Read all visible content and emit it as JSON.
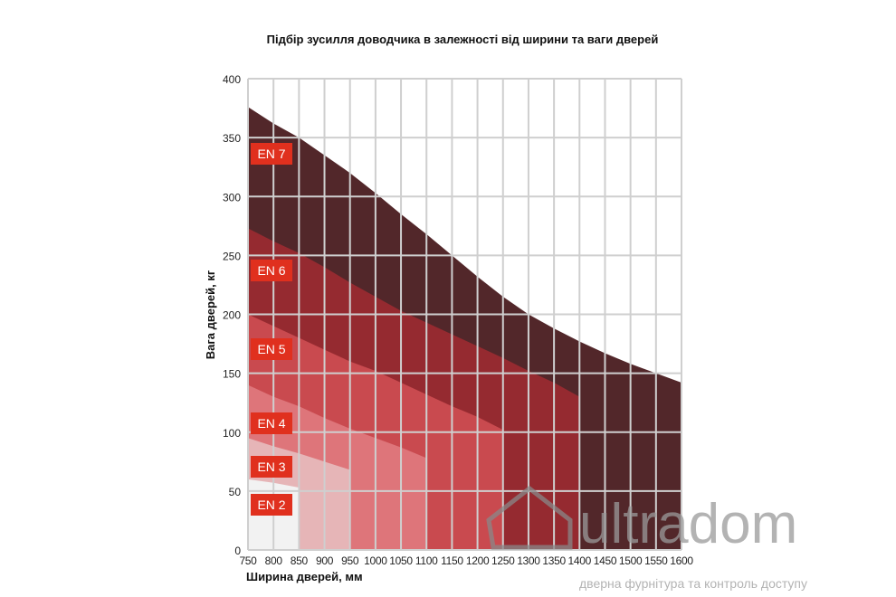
{
  "chart_data": {
    "type": "area",
    "title": "Підбір зусилля доводчика в залежності від ширини та ваги дверей",
    "xlabel": "Ширина дверей, мм",
    "ylabel": "Вага дверей, кг",
    "xlim": [
      750,
      1600
    ],
    "ylim": [
      0,
      400
    ],
    "x_ticks": [
      750,
      800,
      850,
      900,
      950,
      1000,
      1050,
      1100,
      1150,
      1200,
      1250,
      1300,
      1350,
      1400,
      1450,
      1500,
      1550,
      1600
    ],
    "y_ticks": [
      0,
      50,
      100,
      150,
      200,
      250,
      300,
      350,
      400
    ],
    "grid": true,
    "series": [
      {
        "name": "EN 7",
        "color": "#52272a",
        "x": [
          750,
          800,
          850,
          900,
          950,
          1000,
          1050,
          1100,
          1150,
          1200,
          1250,
          1300,
          1350,
          1400,
          1450,
          1500,
          1550,
          1600
        ],
        "upper": [
          376,
          362,
          350,
          335,
          320,
          303,
          285,
          268,
          250,
          232,
          215,
          200,
          188,
          177,
          167,
          158,
          150,
          142
        ]
      },
      {
        "name": "EN 6",
        "color": "#952a30",
        "x": [
          750,
          800,
          850,
          900,
          950,
          1000,
          1050,
          1100,
          1150,
          1200,
          1250,
          1300,
          1350,
          1400
        ],
        "upper": [
          273,
          262,
          252,
          240,
          227,
          215,
          203,
          193,
          183,
          173,
          163,
          152,
          142,
          130
        ]
      },
      {
        "name": "EN 5",
        "color": "#c94a4f",
        "x": [
          750,
          800,
          850,
          900,
          950,
          1000,
          1050,
          1100,
          1150,
          1200,
          1250
        ],
        "upper": [
          200,
          190,
          180,
          170,
          160,
          152,
          142,
          132,
          122,
          113,
          102
        ]
      },
      {
        "name": "EN 4",
        "color": "#de757a",
        "x": [
          750,
          800,
          850,
          900,
          950,
          1000,
          1050,
          1100
        ],
        "upper": [
          140,
          130,
          122,
          112,
          103,
          95,
          87,
          78
        ]
      },
      {
        "name": "EN 3",
        "color": "#e6b5b7",
        "x": [
          750,
          800,
          850,
          900,
          950
        ],
        "upper": [
          95,
          88,
          82,
          75,
          68
        ]
      },
      {
        "name": "EN 2",
        "color": "#f2f2f2",
        "x": [
          750,
          800,
          850
        ],
        "upper": [
          60,
          57,
          53
        ]
      }
    ],
    "label_color": "#e0301e"
  },
  "watermark": {
    "brand": "ultradom",
    "tagline": "дверна фурнітура та контроль доступу"
  }
}
